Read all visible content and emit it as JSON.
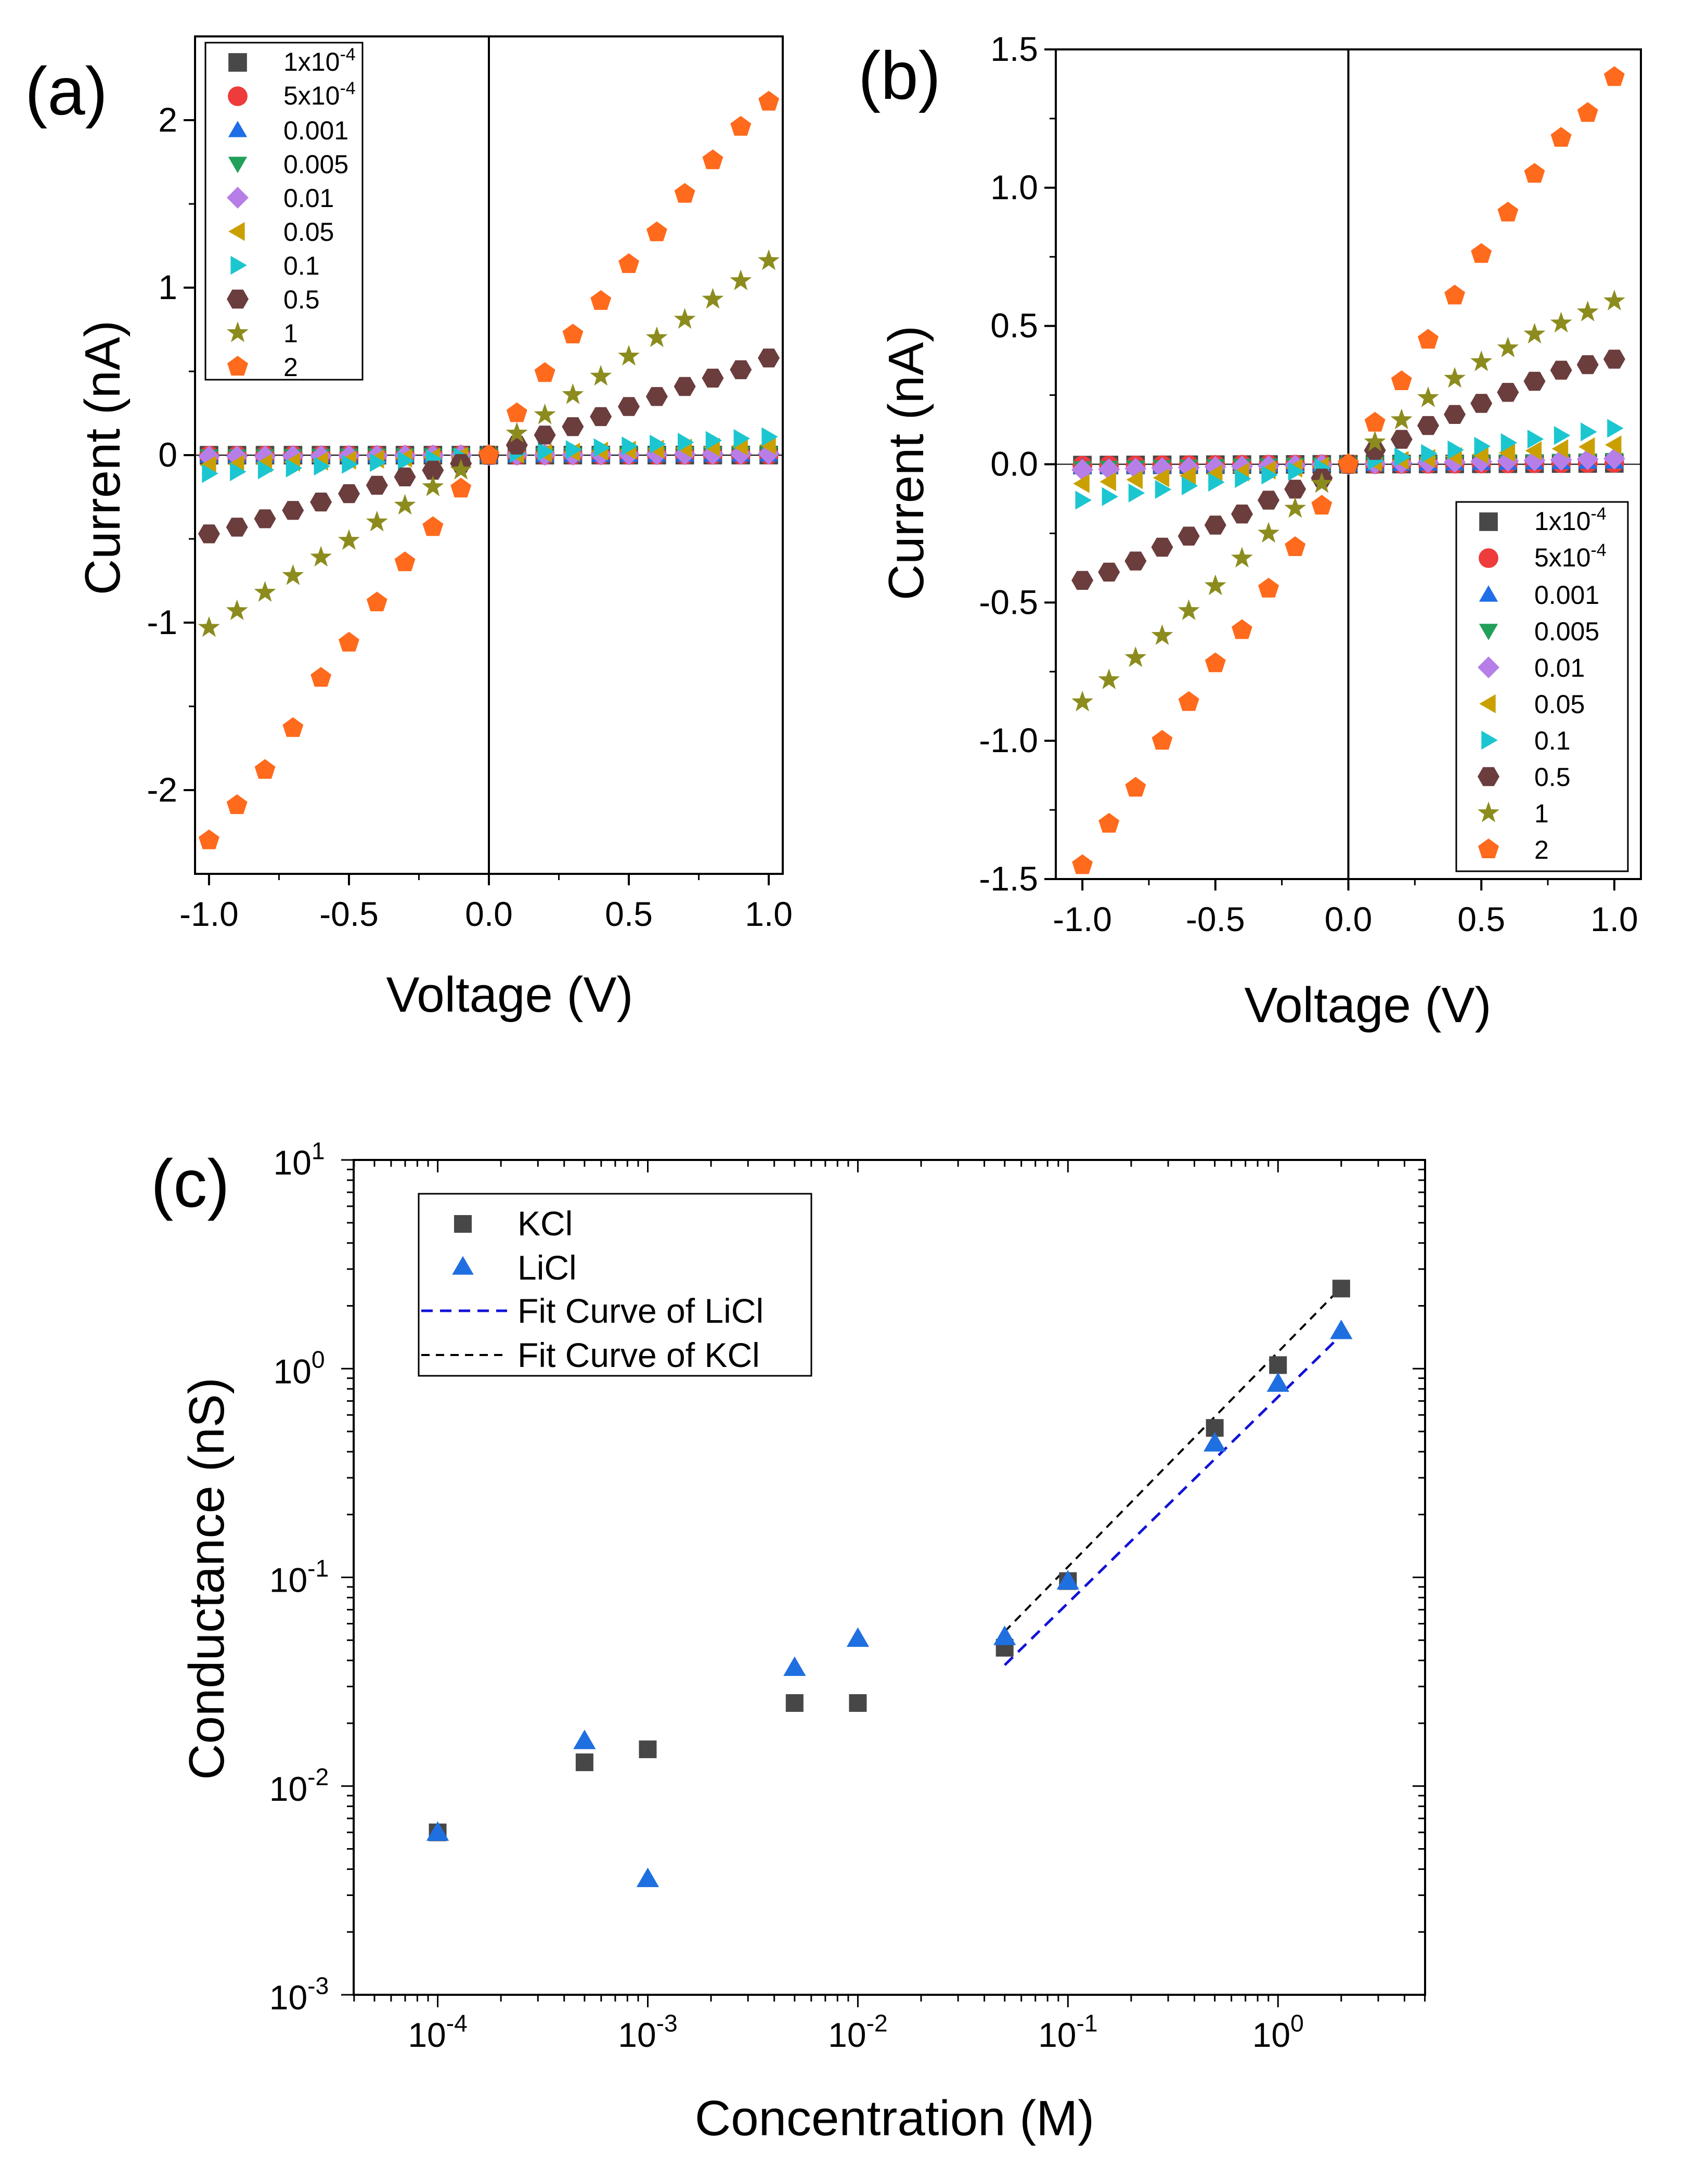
{
  "figure": {
    "panel_labels": [
      "(a)",
      "(b)",
      "(c)"
    ],
    "marker_colors": {
      "1x10^-4": "#484848",
      "5x10^-4": "#ee3b3b",
      "0.001": "#1f6ee8",
      "0.005": "#20a05a",
      "0.01": "#b77ee8",
      "0.05": "#c9a000",
      "0.1": "#1cc6d0",
      "0.5": "#6b3d3d",
      "1": "#8c8c1e",
      "2": "#ff6a1c"
    },
    "iv_legend": [
      {
        "key": "1x10^-4",
        "base": "1x10",
        "exp": "-4",
        "marker": "square"
      },
      {
        "key": "5x10^-4",
        "base": "5x10",
        "exp": "-4",
        "marker": "circle"
      },
      {
        "key": "0.001",
        "base": "0.001",
        "exp": "",
        "marker": "triangle-up"
      },
      {
        "key": "0.005",
        "base": "0.005",
        "exp": "",
        "marker": "triangle-down"
      },
      {
        "key": "0.01",
        "base": "0.01",
        "exp": "",
        "marker": "diamond"
      },
      {
        "key": "0.05",
        "base": "0.05",
        "exp": "",
        "marker": "triangle-left"
      },
      {
        "key": "0.1",
        "base": "0.1",
        "exp": "",
        "marker": "triangle-right"
      },
      {
        "key": "0.5",
        "base": "0.5",
        "exp": "",
        "marker": "hexagon"
      },
      {
        "key": "1",
        "base": "1",
        "exp": "",
        "marker": "star"
      },
      {
        "key": "2",
        "base": "2",
        "exp": "",
        "marker": "pentagon"
      }
    ],
    "c_colors": {
      "KCl": "#474747",
      "LiCl": "#1f6fe0",
      "LiCl_fit": "#1212d8",
      "KCl_fit": "#000000"
    }
  },
  "chart_data": [
    {
      "panel": "(a)",
      "type": "scatter",
      "xlabel": "Voltage (V)",
      "ylabel": "Current (nA)",
      "xlim": [
        -1.05,
        1.05
      ],
      "ylim": [
        -2.5,
        2.5
      ],
      "xticks": [
        -1.0,
        -0.5,
        0.0,
        0.5,
        1.0
      ],
      "xtick_labels": [
        "-1.0",
        "-0.5",
        "0.0",
        "0.5",
        "1.0"
      ],
      "yticks": [
        -2,
        -1,
        0,
        1,
        2
      ],
      "ytick_labels": [
        "-2",
        "-1",
        "0",
        "1",
        "2"
      ],
      "legend_position": "top-left",
      "x": [
        -1.0,
        -0.9,
        -0.8,
        -0.7,
        -0.6,
        -0.5,
        -0.4,
        -0.3,
        -0.2,
        -0.1,
        0.0,
        0.1,
        0.2,
        0.3,
        0.4,
        0.5,
        0.6,
        0.7,
        0.8,
        0.9,
        1.0
      ],
      "series": [
        {
          "name": "1x10^-4",
          "slope": 0.0004
        },
        {
          "name": "5x10^-4",
          "slope": 0.003
        },
        {
          "name": "0.001",
          "slope": 0.004
        },
        {
          "name": "0.005",
          "slope": 0.008
        },
        {
          "name": "0.01",
          "slope": 0.008
        },
        {
          "name": "0.05",
          "slope": 0.06
        },
        {
          "name": "0.1",
          "slope": 0.11
        },
        {
          "name": "0.5",
          "values": [
            -0.47,
            -0.43,
            -0.38,
            -0.33,
            -0.28,
            -0.23,
            -0.18,
            -0.13,
            -0.09,
            -0.05,
            0.0,
            0.06,
            0.12,
            0.17,
            0.23,
            0.29,
            0.35,
            0.41,
            0.46,
            0.51,
            0.58
          ]
        },
        {
          "name": "1",
          "values": [
            -1.03,
            -0.93,
            -0.82,
            -0.72,
            -0.61,
            -0.51,
            -0.4,
            -0.3,
            -0.19,
            -0.09,
            0.0,
            0.13,
            0.24,
            0.36,
            0.47,
            0.59,
            0.7,
            0.81,
            0.93,
            1.04,
            1.16
          ]
        },
        {
          "name": "2",
          "values": [
            -2.3,
            -2.09,
            -1.88,
            -1.63,
            -1.33,
            -1.12,
            -0.88,
            -0.64,
            -0.43,
            -0.2,
            0.0,
            0.25,
            0.49,
            0.72,
            0.92,
            1.14,
            1.33,
            1.56,
            1.76,
            1.96,
            2.11
          ]
        }
      ]
    },
    {
      "panel": "(b)",
      "type": "scatter",
      "xlabel": "Voltage (V)",
      "ylabel": "Current (nA)",
      "xlim": [
        -1.1,
        1.1
      ],
      "ylim": [
        -1.5,
        1.5
      ],
      "xticks": [
        -1.0,
        -0.5,
        0.0,
        0.5,
        1.0
      ],
      "xtick_labels": [
        "-1.0",
        "-0.5",
        "0.0",
        "0.5",
        "1.0"
      ],
      "yticks": [
        -1.5,
        -1.0,
        -0.5,
        0.0,
        0.5,
        1.0,
        1.5
      ],
      "ytick_labels": [
        "-1.5",
        "-1.0",
        "-0.5",
        "0.0",
        "0.5",
        "1.0",
        "1.5"
      ],
      "legend_position": "bottom-right",
      "x": [
        -1.0,
        -0.9,
        -0.8,
        -0.7,
        -0.6,
        -0.5,
        -0.4,
        -0.3,
        -0.2,
        -0.1,
        0.0,
        0.1,
        0.2,
        0.3,
        0.4,
        0.5,
        0.6,
        0.7,
        0.8,
        0.9,
        1.0
      ],
      "series": [
        {
          "name": "1x10^-4",
          "slope": 0.003
        },
        {
          "name": "5x10^-4",
          "slope": 0.005
        },
        {
          "name": "0.001",
          "slope": 0.01
        },
        {
          "name": "0.005",
          "slope": 0.015
        },
        {
          "name": "0.01",
          "slope": 0.02
        },
        {
          "name": "0.05",
          "slope": 0.07
        },
        {
          "name": "0.1",
          "slope": 0.13
        },
        {
          "name": "0.5",
          "values": [
            -0.42,
            -0.39,
            -0.35,
            -0.3,
            -0.26,
            -0.22,
            -0.18,
            -0.13,
            -0.09,
            -0.05,
            0.0,
            0.05,
            0.09,
            0.14,
            0.18,
            0.22,
            0.26,
            0.3,
            0.34,
            0.36,
            0.38
          ]
        },
        {
          "name": "1",
          "values": [
            -0.86,
            -0.78,
            -0.7,
            -0.62,
            -0.53,
            -0.44,
            -0.34,
            -0.25,
            -0.16,
            -0.07,
            0.0,
            0.08,
            0.16,
            0.24,
            0.31,
            0.37,
            0.42,
            0.47,
            0.51,
            0.55,
            0.59
          ]
        },
        {
          "name": "2",
          "values": [
            -1.45,
            -1.3,
            -1.17,
            -1.0,
            -0.86,
            -0.72,
            -0.6,
            -0.45,
            -0.3,
            -0.15,
            0.0,
            0.15,
            0.3,
            0.45,
            0.61,
            0.76,
            0.91,
            1.05,
            1.18,
            1.27,
            1.4
          ]
        }
      ]
    },
    {
      "panel": "(c)",
      "type": "scatter",
      "xscale": "log",
      "yscale": "log",
      "xlabel": "Concentration (M)",
      "ylabel": "Conductance (nS)",
      "xlim_log10": [
        -4.4,
        0.7
      ],
      "ylim_log10": [
        -3,
        1
      ],
      "xtick_exponents": [
        "-4",
        "-3",
        "-2",
        "-1",
        "0"
      ],
      "ytick_exponents": [
        "-3",
        "-2",
        "-1",
        "0",
        "1"
      ],
      "tick_base": "10",
      "legend_position": "top-left",
      "legend": [
        "KCl",
        "LiCl",
        "Fit Curve of LiCl",
        "Fit Curve of KCl"
      ],
      "series": [
        {
          "name": "KCl",
          "x": [
            0.0001,
            0.0005,
            0.001,
            0.005,
            0.01,
            0.05,
            0.1,
            0.5,
            1,
            2
          ],
          "values": [
            0.006,
            0.013,
            0.015,
            0.025,
            0.025,
            0.046,
            0.096,
            0.52,
            1.04,
            2.42
          ]
        },
        {
          "name": "LiCl",
          "x": [
            0.0001,
            0.0005,
            0.001,
            0.005,
            0.01,
            0.05,
            0.1,
            0.5,
            1,
            2
          ],
          "values": [
            0.006,
            0.0165,
            0.0036,
            0.037,
            0.051,
            0.052,
            0.096,
            0.44,
            0.85,
            1.52
          ]
        },
        {
          "name": "Fit Curve of LiCl",
          "x": [
            0.05,
            2
          ],
          "values": [
            0.038,
            1.45
          ]
        },
        {
          "name": "Fit Curve of KCl",
          "x": [
            0.05,
            2
          ],
          "values": [
            0.055,
            2.45
          ]
        }
      ]
    }
  ]
}
